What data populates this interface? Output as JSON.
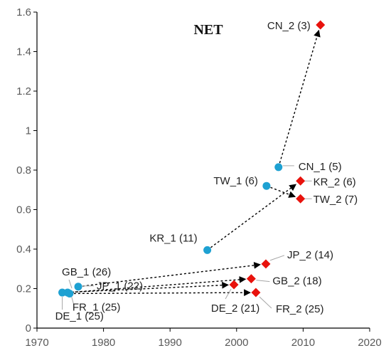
{
  "chart_data": {
    "type": "scatter",
    "title": "NET",
    "xlabel": "",
    "ylabel": "",
    "xlim": [
      1970,
      2020
    ],
    "ylim": [
      0,
      1.6
    ],
    "x_ticks": [
      "1970",
      "1980",
      "1990",
      "2000",
      "2010",
      "2020"
    ],
    "y_ticks": [
      "0",
      "0.2",
      "0.4",
      "0.6",
      "0.8",
      "1",
      "1.2",
      "1.4",
      "1.6"
    ],
    "grid": false,
    "colors": {
      "first": "#1ea1d2",
      "second": "#e8120c",
      "arrow": "#000000",
      "leader": "#a6a6a6"
    },
    "points": [
      {
        "id": "CN_1",
        "label": "CN_1 (5)",
        "x": 2006.3,
        "y": 0.815,
        "marker": "circle"
      },
      {
        "id": "TW_1",
        "label": "TW_1 (6)",
        "x": 2004.5,
        "y": 0.72,
        "marker": "circle"
      },
      {
        "id": "KR_1",
        "label": "KR_1 (11)",
        "x": 1995.6,
        "y": 0.395,
        "marker": "circle"
      },
      {
        "id": "GB_1",
        "label": "GB_1 (26)",
        "x": 1974.6,
        "y": 0.18,
        "marker": "circle"
      },
      {
        "id": "JP_1",
        "label": "JP_1 (22)",
        "x": 1976.2,
        "y": 0.21,
        "marker": "circle"
      },
      {
        "id": "FR_1",
        "label": "FR_1 (25)",
        "x": 1974.9,
        "y": 0.175,
        "marker": "circle"
      },
      {
        "id": "DE_1",
        "label": "DE_1 (25)",
        "x": 1973.8,
        "y": 0.18,
        "marker": "circle"
      },
      {
        "id": "CN_2",
        "label": "CN_2 (3)",
        "x": 2012.6,
        "y": 1.535,
        "marker": "diamond"
      },
      {
        "id": "KR_2",
        "label": "KR_2 (6)",
        "x": 2009.6,
        "y": 0.745,
        "marker": "diamond"
      },
      {
        "id": "TW_2",
        "label": "TW_2 (7)",
        "x": 2009.6,
        "y": 0.655,
        "marker": "diamond"
      },
      {
        "id": "JP_2",
        "label": "JP_2 (14)",
        "x": 2004.4,
        "y": 0.325,
        "marker": "diamond"
      },
      {
        "id": "GB_2",
        "label": "GB_2 (18)",
        "x": 2002.2,
        "y": 0.25,
        "marker": "diamond"
      },
      {
        "id": "DE_2",
        "label": "DE_2 (21)",
        "x": 1999.6,
        "y": 0.22,
        "marker": "diamond"
      },
      {
        "id": "FR_2",
        "label": "FR_2 (25)",
        "x": 2002.9,
        "y": 0.18,
        "marker": "diamond"
      }
    ],
    "arrows": [
      {
        "from": "CN_1",
        "to": "CN_2"
      },
      {
        "from": "KR_1",
        "to": "KR_2"
      },
      {
        "from": "TW_1",
        "to": "TW_2"
      },
      {
        "from": "JP_1",
        "to": "JP_2"
      },
      {
        "from": "GB_1",
        "to": "GB_2"
      },
      {
        "from": "DE_1",
        "to": "DE_2"
      },
      {
        "from": "FR_1",
        "to": "FR_2"
      }
    ]
  }
}
